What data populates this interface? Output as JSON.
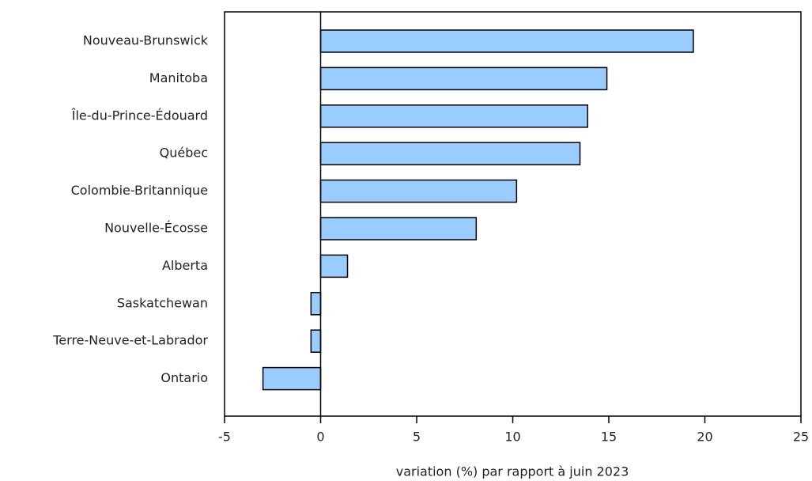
{
  "chart_data": {
    "type": "bar",
    "orientation": "horizontal",
    "x_label": "variation (%) par rapport à juin 2023",
    "categories": [
      "Nouveau-Brunswick",
      "Manitoba",
      "Île-du-Prince-Édouard",
      "Québec",
      "Colombie-Britannique",
      "Nouvelle-Écosse",
      "Alberta",
      "Saskatchewan",
      "Terre-Neuve-et-Labrador",
      "Ontario"
    ],
    "values": [
      19.4,
      14.9,
      13.9,
      13.5,
      10.2,
      8.1,
      1.4,
      -0.5,
      -0.5,
      -3.0
    ],
    "color": "#99ccff",
    "xlim": [
      -5,
      25
    ],
    "xticks": [
      -5,
      0,
      5,
      10,
      15,
      20,
      25
    ],
    "grid": false
  }
}
